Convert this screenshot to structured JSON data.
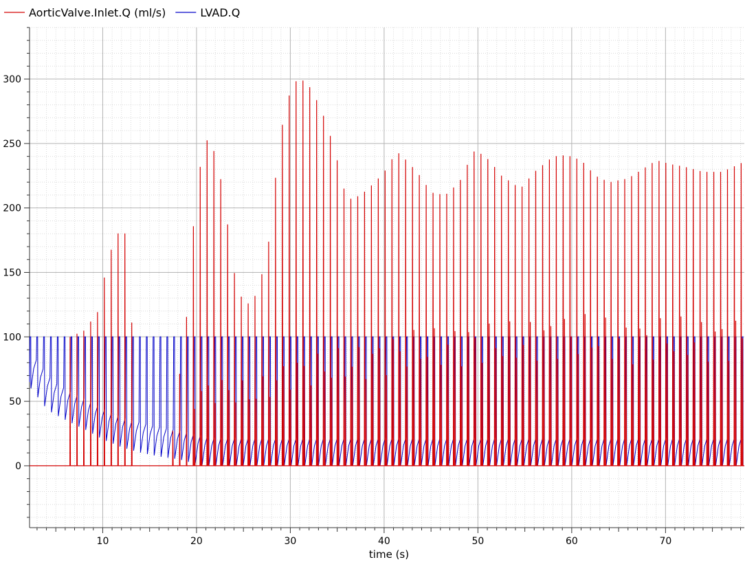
{
  "chart_data": {
    "type": "line",
    "title": "",
    "xlabel": "time (s)",
    "ylabel": "",
    "xlim": [
      2.2,
      78.4
    ],
    "ylim": [
      -48,
      340
    ],
    "x_ticks": [
      10,
      20,
      30,
      40,
      50,
      60,
      70
    ],
    "y_ticks": [
      0,
      50,
      100,
      150,
      200,
      250,
      300
    ],
    "grid": true,
    "legend_position": "top-left",
    "series": [
      {
        "name": "AorticValve.Inlet.Q (ml/s)",
        "color": "#d40000",
        "beat_start_s": 6.5,
        "beat_period_s": 0.73,
        "pulse_width_s": 0.06,
        "baseline": 0,
        "peak_envelope": {
          "t": [
            6.5,
            8,
            9.5,
            10.5,
            11.5,
            12.3,
            12.9,
            13.5,
            17,
            19.2,
            19.8,
            20.5,
            21,
            21.6,
            22.4,
            23.2,
            24,
            25,
            26,
            27,
            27.9,
            28.6,
            29.4,
            30.3,
            31.0,
            31.8,
            32.7,
            33.6,
            34.6,
            36,
            37.5,
            39,
            40.2,
            41.3,
            42.5,
            43.8,
            45,
            46.5,
            48,
            49.5,
            50.3,
            51.2,
            52.5,
            54.5,
            56,
            58,
            59.5,
            61,
            62.5,
            64,
            66,
            67.5,
            69,
            70.5,
            72,
            74,
            76,
            78.4
          ],
          "peak": [
            100,
            105,
            120,
            160,
            180,
            182,
            155,
            0,
            0,
            133,
            205,
            238,
            253,
            250,
            230,
            192,
            150,
            125,
            127,
            150,
            182,
            240,
            277,
            297,
            300,
            297,
            285,
            270,
            248,
            206,
            210,
            220,
            230,
            244,
            236,
            225,
            212,
            210,
            220,
            244,
            242,
            237,
            225,
            215,
            228,
            240,
            241,
            237,
            225,
            220,
            223,
            230,
            237,
            234,
            232,
            228,
            228,
            236
          ]
        },
        "secondary_envelope": {
          "t": [
            19,
            22,
            26,
            30,
            34,
            38,
            42,
            46,
            50,
            54,
            58,
            62,
            66,
            70,
            74,
            78.4
          ],
          "peak": [
            60,
            70,
            65,
            85,
            90,
            95,
            105,
            108,
            112,
            112,
            118,
            118,
            112,
            117,
            114,
            117
          ]
        }
      },
      {
        "name": "LVAD.Q",
        "color": "#0000c8",
        "initial_value": 65,
        "pulse_period_s": 0.73,
        "plateau_value": 100,
        "trough_envelope": {
          "t": [
            2.2,
            4,
            6,
            8,
            10,
            12,
            14,
            16,
            18,
            19,
            21,
            78.4
          ],
          "trough": [
            60,
            43,
            35,
            28,
            20,
            14,
            10,
            7,
            5,
            3,
            0,
            0
          ]
        }
      }
    ]
  }
}
